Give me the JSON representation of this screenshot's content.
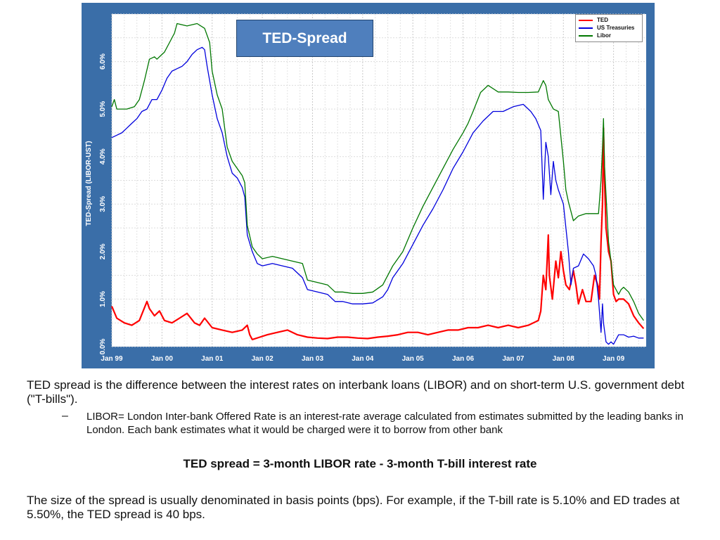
{
  "chart_data": {
    "type": "line",
    "title": "TED-Spread",
    "ylabel": "TED-Spread (LIBOR-UST)",
    "xlabel": "",
    "x_ticks": [
      "Jan 99",
      "Jan 00",
      "Jan 01",
      "Jan 02",
      "Jan 03",
      "Jan 04",
      "Jan 05",
      "Jan 06",
      "Jan 07",
      "Jan 08",
      "Jan 09"
    ],
    "y_ticks": [
      "0.0%",
      "1.0%",
      "2.0%",
      "3.0%",
      "4.0%",
      "5.0%",
      "6.0%"
    ],
    "xlim": [
      1999.0,
      2009.65
    ],
    "ylim": [
      0.0,
      7.0
    ],
    "grid": true,
    "legend_position": "top-right",
    "series": [
      {
        "name": "TED",
        "color": "#ff0000",
        "points": [
          [
            1999.0,
            0.85
          ],
          [
            1999.1,
            0.6
          ],
          [
            1999.25,
            0.5
          ],
          [
            1999.4,
            0.45
          ],
          [
            1999.55,
            0.55
          ],
          [
            1999.7,
            0.95
          ],
          [
            1999.75,
            0.8
          ],
          [
            1999.85,
            0.65
          ],
          [
            1999.95,
            0.75
          ],
          [
            2000.05,
            0.55
          ],
          [
            2000.2,
            0.5
          ],
          [
            2000.35,
            0.6
          ],
          [
            2000.5,
            0.7
          ],
          [
            2000.65,
            0.5
          ],
          [
            2000.75,
            0.45
          ],
          [
            2000.85,
            0.6
          ],
          [
            2001.0,
            0.4
          ],
          [
            2001.2,
            0.35
          ],
          [
            2001.4,
            0.3
          ],
          [
            2001.6,
            0.35
          ],
          [
            2001.7,
            0.45
          ],
          [
            2001.75,
            0.25
          ],
          [
            2001.8,
            0.15
          ],
          [
            2001.95,
            0.2
          ],
          [
            2002.1,
            0.25
          ],
          [
            2002.3,
            0.3
          ],
          [
            2002.5,
            0.35
          ],
          [
            2002.7,
            0.25
          ],
          [
            2002.9,
            0.2
          ],
          [
            2003.1,
            0.18
          ],
          [
            2003.3,
            0.17
          ],
          [
            2003.5,
            0.2
          ],
          [
            2003.7,
            0.2
          ],
          [
            2003.9,
            0.18
          ],
          [
            2004.1,
            0.17
          ],
          [
            2004.3,
            0.2
          ],
          [
            2004.5,
            0.22
          ],
          [
            2004.7,
            0.25
          ],
          [
            2004.9,
            0.3
          ],
          [
            2005.1,
            0.3
          ],
          [
            2005.3,
            0.25
          ],
          [
            2005.5,
            0.3
          ],
          [
            2005.7,
            0.35
          ],
          [
            2005.9,
            0.35
          ],
          [
            2006.1,
            0.4
          ],
          [
            2006.3,
            0.4
          ],
          [
            2006.5,
            0.45
          ],
          [
            2006.7,
            0.4
          ],
          [
            2006.9,
            0.45
          ],
          [
            2007.1,
            0.4
          ],
          [
            2007.3,
            0.45
          ],
          [
            2007.5,
            0.55
          ],
          [
            2007.55,
            0.75
          ],
          [
            2007.6,
            1.5
          ],
          [
            2007.65,
            1.2
          ],
          [
            2007.7,
            2.35
          ],
          [
            2007.72,
            1.5
          ],
          [
            2007.78,
            1.0
          ],
          [
            2007.85,
            1.8
          ],
          [
            2007.9,
            1.45
          ],
          [
            2007.95,
            2.0
          ],
          [
            2008.0,
            1.6
          ],
          [
            2008.05,
            1.3
          ],
          [
            2008.12,
            1.2
          ],
          [
            2008.2,
            1.6
          ],
          [
            2008.25,
            1.3
          ],
          [
            2008.3,
            0.9
          ],
          [
            2008.38,
            1.2
          ],
          [
            2008.45,
            0.95
          ],
          [
            2008.55,
            0.95
          ],
          [
            2008.62,
            1.5
          ],
          [
            2008.7,
            1.25
          ],
          [
            2008.72,
            1.0
          ],
          [
            2008.75,
            2.2
          ],
          [
            2008.78,
            3.0
          ],
          [
            2008.8,
            4.6
          ],
          [
            2008.82,
            3.5
          ],
          [
            2008.85,
            2.5
          ],
          [
            2008.9,
            2.0
          ],
          [
            2008.95,
            1.8
          ],
          [
            2009.0,
            1.1
          ],
          [
            2009.05,
            0.95
          ],
          [
            2009.1,
            1.0
          ],
          [
            2009.2,
            1.0
          ],
          [
            2009.3,
            0.9
          ],
          [
            2009.4,
            0.65
          ],
          [
            2009.5,
            0.5
          ],
          [
            2009.6,
            0.38
          ]
        ]
      },
      {
        "name": "US Treasuries",
        "color": "#0000dd",
        "points": [
          [
            1999.0,
            4.4
          ],
          [
            1999.1,
            4.45
          ],
          [
            1999.2,
            4.5
          ],
          [
            1999.3,
            4.6
          ],
          [
            1999.4,
            4.7
          ],
          [
            1999.5,
            4.8
          ],
          [
            1999.6,
            4.95
          ],
          [
            1999.7,
            5.0
          ],
          [
            1999.8,
            5.2
          ],
          [
            1999.9,
            5.2
          ],
          [
            2000.0,
            5.4
          ],
          [
            2000.1,
            5.65
          ],
          [
            2000.2,
            5.8
          ],
          [
            2000.3,
            5.85
          ],
          [
            2000.4,
            5.9
          ],
          [
            2000.5,
            6.0
          ],
          [
            2000.6,
            6.15
          ],
          [
            2000.7,
            6.25
          ],
          [
            2000.8,
            6.3
          ],
          [
            2000.85,
            6.25
          ],
          [
            2000.9,
            5.9
          ],
          [
            2001.0,
            5.3
          ],
          [
            2001.1,
            4.8
          ],
          [
            2001.2,
            4.5
          ],
          [
            2001.3,
            4.0
          ],
          [
            2001.4,
            3.65
          ],
          [
            2001.5,
            3.55
          ],
          [
            2001.6,
            3.35
          ],
          [
            2001.65,
            3.15
          ],
          [
            2001.7,
            2.35
          ],
          [
            2001.8,
            2.0
          ],
          [
            2001.9,
            1.75
          ],
          [
            2002.0,
            1.7
          ],
          [
            2002.2,
            1.75
          ],
          [
            2002.4,
            1.7
          ],
          [
            2002.6,
            1.65
          ],
          [
            2002.8,
            1.45
          ],
          [
            2002.9,
            1.2
          ],
          [
            2003.1,
            1.15
          ],
          [
            2003.3,
            1.1
          ],
          [
            2003.45,
            0.95
          ],
          [
            2003.6,
            0.95
          ],
          [
            2003.8,
            0.9
          ],
          [
            2004.0,
            0.9
          ],
          [
            2004.2,
            0.92
          ],
          [
            2004.4,
            1.05
          ],
          [
            2004.5,
            1.2
          ],
          [
            2004.6,
            1.45
          ],
          [
            2004.8,
            1.75
          ],
          [
            2005.0,
            2.15
          ],
          [
            2005.2,
            2.55
          ],
          [
            2005.4,
            2.9
          ],
          [
            2005.6,
            3.3
          ],
          [
            2005.8,
            3.75
          ],
          [
            2006.0,
            4.1
          ],
          [
            2006.2,
            4.5
          ],
          [
            2006.4,
            4.75
          ],
          [
            2006.6,
            4.95
          ],
          [
            2006.8,
            4.95
          ],
          [
            2007.0,
            5.05
          ],
          [
            2007.2,
            5.1
          ],
          [
            2007.35,
            4.95
          ],
          [
            2007.45,
            4.8
          ],
          [
            2007.55,
            4.55
          ],
          [
            2007.6,
            3.1
          ],
          [
            2007.65,
            4.3
          ],
          [
            2007.7,
            4.0
          ],
          [
            2007.75,
            3.2
          ],
          [
            2007.8,
            3.9
          ],
          [
            2007.85,
            3.5
          ],
          [
            2007.9,
            3.3
          ],
          [
            2008.0,
            3.0
          ],
          [
            2008.1,
            2.0
          ],
          [
            2008.15,
            1.3
          ],
          [
            2008.2,
            1.65
          ],
          [
            2008.3,
            1.7
          ],
          [
            2008.4,
            1.95
          ],
          [
            2008.5,
            1.85
          ],
          [
            2008.6,
            1.7
          ],
          [
            2008.65,
            1.5
          ],
          [
            2008.7,
            1.0
          ],
          [
            2008.75,
            0.3
          ],
          [
            2008.78,
            0.9
          ],
          [
            2008.8,
            0.5
          ],
          [
            2008.85,
            0.1
          ],
          [
            2008.9,
            0.05
          ],
          [
            2008.95,
            0.1
          ],
          [
            2009.0,
            0.05
          ],
          [
            2009.1,
            0.25
          ],
          [
            2009.2,
            0.25
          ],
          [
            2009.3,
            0.2
          ],
          [
            2009.4,
            0.22
          ],
          [
            2009.5,
            0.18
          ],
          [
            2009.6,
            0.18
          ]
        ]
      },
      {
        "name": "Libor",
        "color": "#007700",
        "points": [
          [
            1999.0,
            5.05
          ],
          [
            1999.05,
            5.2
          ],
          [
            1999.1,
            5.0
          ],
          [
            1999.3,
            5.0
          ],
          [
            1999.45,
            5.05
          ],
          [
            1999.55,
            5.2
          ],
          [
            1999.65,
            5.6
          ],
          [
            1999.75,
            6.05
          ],
          [
            1999.85,
            6.1
          ],
          [
            1999.9,
            6.05
          ],
          [
            2000.0,
            6.15
          ],
          [
            2000.05,
            6.2
          ],
          [
            2000.15,
            6.4
          ],
          [
            2000.25,
            6.6
          ],
          [
            2000.3,
            6.8
          ],
          [
            2000.5,
            6.75
          ],
          [
            2000.7,
            6.8
          ],
          [
            2000.85,
            6.7
          ],
          [
            2000.95,
            6.4
          ],
          [
            2001.0,
            5.8
          ],
          [
            2001.1,
            5.3
          ],
          [
            2001.2,
            5.0
          ],
          [
            2001.3,
            4.2
          ],
          [
            2001.4,
            3.9
          ],
          [
            2001.5,
            3.75
          ],
          [
            2001.6,
            3.6
          ],
          [
            2001.65,
            3.45
          ],
          [
            2001.7,
            2.55
          ],
          [
            2001.8,
            2.1
          ],
          [
            2001.9,
            1.95
          ],
          [
            2002.0,
            1.85
          ],
          [
            2002.2,
            1.9
          ],
          [
            2002.4,
            1.85
          ],
          [
            2002.6,
            1.8
          ],
          [
            2002.8,
            1.75
          ],
          [
            2002.9,
            1.4
          ],
          [
            2003.1,
            1.35
          ],
          [
            2003.3,
            1.3
          ],
          [
            2003.45,
            1.15
          ],
          [
            2003.6,
            1.15
          ],
          [
            2003.8,
            1.12
          ],
          [
            2004.0,
            1.12
          ],
          [
            2004.2,
            1.15
          ],
          [
            2004.4,
            1.3
          ],
          [
            2004.5,
            1.5
          ],
          [
            2004.6,
            1.7
          ],
          [
            2004.8,
            2.0
          ],
          [
            2005.0,
            2.5
          ],
          [
            2005.2,
            2.95
          ],
          [
            2005.4,
            3.35
          ],
          [
            2005.6,
            3.75
          ],
          [
            2005.8,
            4.15
          ],
          [
            2006.0,
            4.5
          ],
          [
            2006.1,
            4.7
          ],
          [
            2006.2,
            4.95
          ],
          [
            2006.35,
            5.35
          ],
          [
            2006.5,
            5.5
          ],
          [
            2006.7,
            5.36
          ],
          [
            2006.9,
            5.36
          ],
          [
            2007.1,
            5.35
          ],
          [
            2007.3,
            5.35
          ],
          [
            2007.5,
            5.36
          ],
          [
            2007.6,
            5.6
          ],
          [
            2007.65,
            5.5
          ],
          [
            2007.7,
            5.2
          ],
          [
            2007.8,
            5.0
          ],
          [
            2007.9,
            4.95
          ],
          [
            2008.0,
            3.9
          ],
          [
            2008.05,
            3.3
          ],
          [
            2008.1,
            3.05
          ],
          [
            2008.2,
            2.65
          ],
          [
            2008.3,
            2.75
          ],
          [
            2008.45,
            2.8
          ],
          [
            2008.6,
            2.8
          ],
          [
            2008.7,
            2.8
          ],
          [
            2008.75,
            3.5
          ],
          [
            2008.78,
            4.2
          ],
          [
            2008.8,
            4.8
          ],
          [
            2008.82,
            3.8
          ],
          [
            2008.85,
            3.2
          ],
          [
            2008.9,
            2.2
          ],
          [
            2008.95,
            1.8
          ],
          [
            2009.0,
            1.3
          ],
          [
            2009.1,
            1.1
          ],
          [
            2009.15,
            1.2
          ],
          [
            2009.2,
            1.25
          ],
          [
            2009.3,
            1.15
          ],
          [
            2009.4,
            0.95
          ],
          [
            2009.5,
            0.7
          ],
          [
            2009.6,
            0.55
          ]
        ]
      }
    ]
  },
  "text": {
    "paragraph1": "TED spread is the difference between the interest rates on interbank loans (LIBOR) and on short-term U.S. government debt (\"T-bills\").",
    "sub_dash": "–",
    "paragraph2": "LIBOR= London Inter-bank Offered Rate is an interest-rate average calculated from estimates submitted by the leading banks in London. Each bank estimates what it would be charged were it to borrow from other bank",
    "formula": "TED spread = 3-month LIBOR rate - 3-month T-bill interest rate",
    "paragraph3": "The size of the spread is usually denominated in basis points (bps). For example, if the T-bill rate is 5.10% and ED trades at 5.50%, the TED spread is 40 bps."
  },
  "colors": {
    "frame": "#3a6ea8",
    "plot_bg": "#ffffff",
    "title_box": "#4f7fbd"
  }
}
